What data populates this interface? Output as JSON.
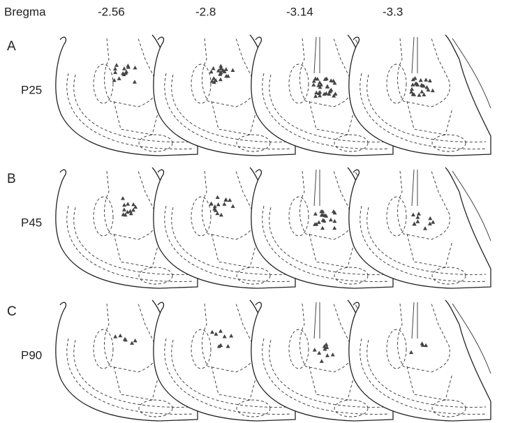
{
  "header": {
    "label": "Bregma",
    "levels": [
      "-2.56",
      "-2.8",
      "-3.14",
      "-3.3"
    ]
  },
  "rows": [
    {
      "letter": "A",
      "age": "P25"
    },
    {
      "letter": "B",
      "age": "P45"
    },
    {
      "letter": "C",
      "age": "P90"
    }
  ]
}
